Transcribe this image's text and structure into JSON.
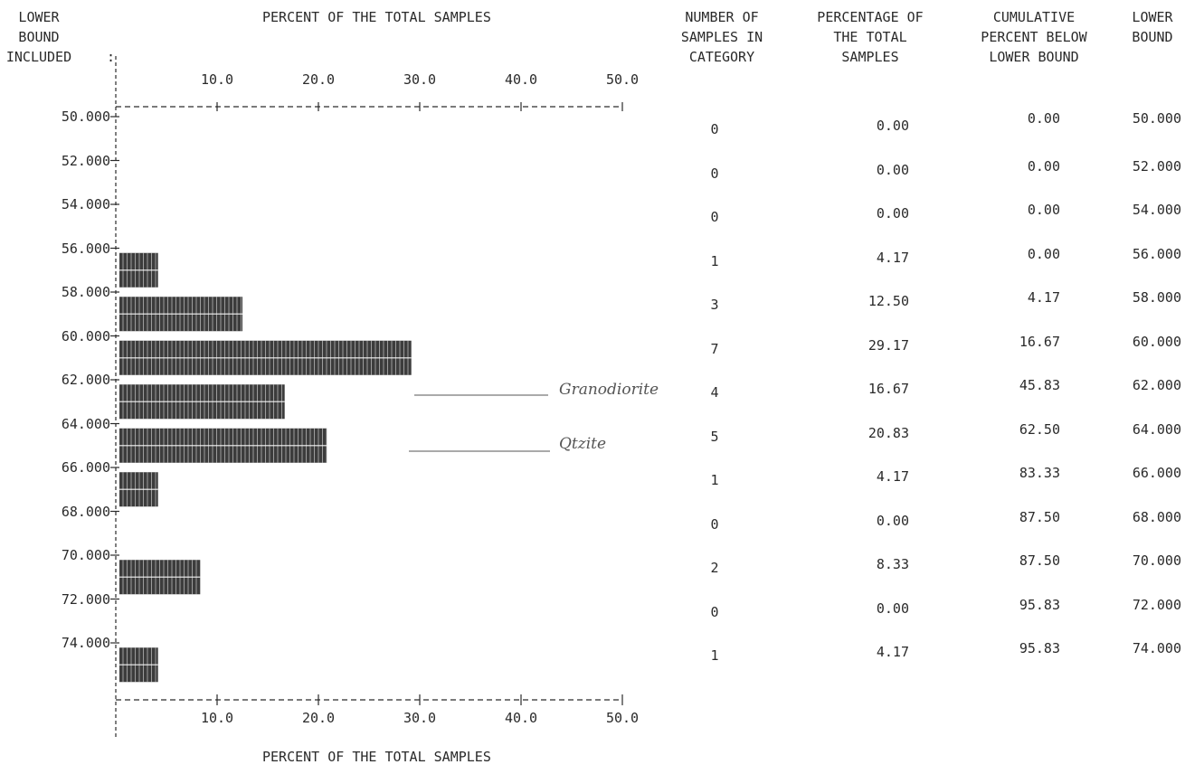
{
  "headers": {
    "lower_bound_included": [
      "LOWER",
      "BOUND",
      "INCLUDED"
    ],
    "percent_axis_title": "PERCENT OF THE TOTAL SAMPLES",
    "number_of_samples": [
      "NUMBER OF",
      "SAMPLES IN",
      "CATEGORY"
    ],
    "percentage_total": [
      "PERCENTAGE OF",
      "THE TOTAL",
      "SAMPLES"
    ],
    "cumulative_percent": [
      "CUMULATIVE",
      "PERCENT BELOW",
      "LOWER BOUND"
    ],
    "lower_bound": [
      "LOWER",
      "BOUND"
    ]
  },
  "chart_data": {
    "type": "bar",
    "orientation": "horizontal",
    "title": "PERCENT OF THE TOTAL SAMPLES",
    "xlabel": "PERCENT OF THE TOTAL SAMPLES",
    "xlim": [
      0,
      50
    ],
    "xticks": [
      "10.0",
      "20.0",
      "30.0",
      "40.0",
      "50.0"
    ],
    "ylabel": "LOWER BOUND INCLUDED",
    "ylim": [
      50,
      76
    ],
    "yticks": [
      "50.000",
      "52.000",
      "54.000",
      "56.000",
      "58.000",
      "60.000",
      "62.000",
      "64.000",
      "66.000",
      "68.000",
      "70.000",
      "72.000",
      "74.000"
    ],
    "categories": [
      50,
      52,
      54,
      56,
      58,
      60,
      62,
      64,
      66,
      68,
      70,
      72,
      74
    ],
    "values": [
      0.0,
      0.0,
      0.0,
      4.17,
      12.5,
      29.17,
      16.67,
      20.83,
      4.17,
      0.0,
      8.33,
      0.0,
      4.17
    ],
    "counts": [
      "0",
      "0",
      "0",
      "1",
      "3",
      "7",
      "4",
      "5",
      "1",
      "0",
      "2",
      "0",
      "1"
    ],
    "percentages": [
      "0.00",
      "0.00",
      "0.00",
      "4.17",
      "12.50",
      "29.17",
      "16.67",
      "20.83",
      "4.17",
      "0.00",
      "8.33",
      "0.00",
      "4.17"
    ],
    "cumulative": [
      "0.00",
      "0.00",
      "0.00",
      "0.00",
      "4.17",
      "16.67",
      "45.83",
      "62.50",
      "83.33",
      "87.50",
      "87.50",
      "95.83",
      "95.83"
    ],
    "lower_bounds_right": [
      "50.000",
      "52.000",
      "54.000",
      "56.000",
      "58.000",
      "60.000",
      "62.000",
      "64.000",
      "66.000",
      "68.000",
      "70.000",
      "72.000",
      "74.000"
    ],
    "annotations": [
      {
        "text": "Granodiorite",
        "category": 62
      },
      {
        "text": "Qtzite",
        "category": 64
      }
    ],
    "grid": false,
    "colors": {
      "bar": "#3c3c3c",
      "text": "#2a2a2a"
    }
  }
}
